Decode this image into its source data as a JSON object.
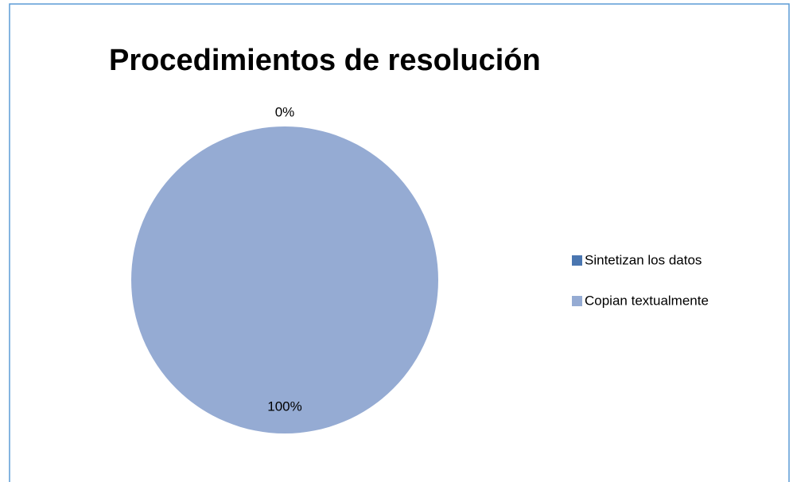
{
  "chart_data": {
    "type": "pie",
    "title": "Procedimientos de resolución",
    "categories": [
      "Sintetizan los datos",
      "Copian textualmente"
    ],
    "values": [
      0,
      100
    ],
    "value_labels": [
      "0%",
      "100%"
    ],
    "colors": [
      "#4a76b0",
      "#95abd3"
    ],
    "legend": "right"
  }
}
